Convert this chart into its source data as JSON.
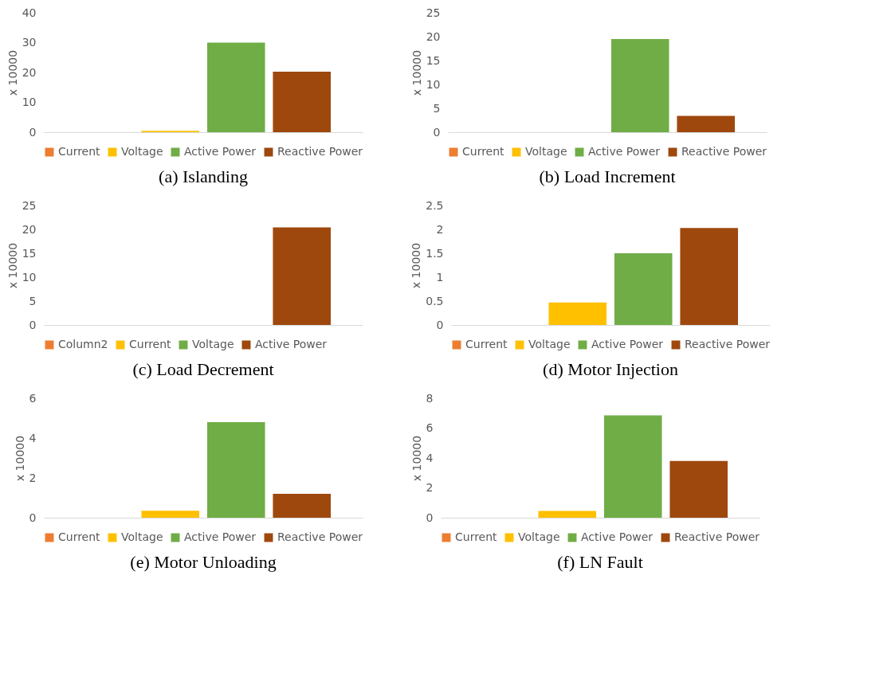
{
  "chart_data": [
    {
      "type": "bar",
      "title": "(a) Islanding",
      "ylabel": "x 10000",
      "categories": [
        null
      ],
      "ylim": [
        0,
        40
      ],
      "yticks": [
        0,
        10,
        20,
        30,
        40
      ],
      "legend": "bottom",
      "tick_labels": "y",
      "series": [
        {
          "name": "Current",
          "color": "#ed7d31",
          "values": [
            0
          ]
        },
        {
          "name": "Voltage",
          "color": "#ffc000",
          "values": [
            0.5
          ]
        },
        {
          "name": "Active Power",
          "color": "#70ad47",
          "values": [
            30
          ]
        },
        {
          "name": "Reactive Power",
          "color": "#9e480e",
          "values": [
            20.3
          ]
        }
      ]
    },
    {
      "type": "bar",
      "title": "(b) Load Increment",
      "ylabel": "x 10000",
      "categories": [
        null
      ],
      "ylim": [
        0,
        25
      ],
      "yticks": [
        0,
        5,
        10,
        15,
        20,
        25
      ],
      "legend": "bottom",
      "tick_labels": "y",
      "series": [
        {
          "name": "Current",
          "color": "#ed7d31",
          "values": [
            0
          ]
        },
        {
          "name": "Voltage",
          "color": "#ffc000",
          "values": [
            0
          ]
        },
        {
          "name": "Active Power",
          "color": "#70ad47",
          "values": [
            19.5
          ]
        },
        {
          "name": "Reactive Power",
          "color": "#9e480e",
          "values": [
            3.4
          ]
        }
      ]
    },
    {
      "type": "bar",
      "title": "(c) Load Decrement",
      "ylabel": "x 10000",
      "categories": [
        null
      ],
      "ylim": [
        0,
        25
      ],
      "yticks": [
        0,
        5,
        10,
        15,
        20,
        25
      ],
      "legend": "bottom",
      "tick_labels": "y",
      "series": [
        {
          "name": "Column2",
          "color": "#ed7d31",
          "values": [
            0
          ]
        },
        {
          "name": "Current",
          "color": "#ffc000",
          "values": [
            0
          ]
        },
        {
          "name": "Voltage",
          "color": "#70ad47",
          "values": [
            0
          ]
        },
        {
          "name": "Active Power",
          "color": "#9e480e",
          "values": [
            20.4
          ]
        }
      ]
    },
    {
      "type": "bar",
      "title": "(d) Motor Injection",
      "ylabel": "x 10000",
      "categories": [
        null
      ],
      "ylim": [
        0,
        2.5
      ],
      "yticks": [
        0,
        0.5,
        1,
        1.5,
        2,
        2.5
      ],
      "legend": "bottom",
      "tick_labels": "y",
      "series": [
        {
          "name": "Current",
          "color": "#ed7d31",
          "values": [
            0
          ]
        },
        {
          "name": "Voltage",
          "color": "#ffc000",
          "values": [
            0.47
          ]
        },
        {
          "name": "Active Power",
          "color": "#70ad47",
          "values": [
            1.5
          ]
        },
        {
          "name": "Reactive Power",
          "color": "#9e480e",
          "values": [
            2.03
          ]
        }
      ]
    },
    {
      "type": "bar",
      "title": "(e) Motor Unloading",
      "ylabel": "x 10000",
      "categories": [
        null
      ],
      "ylim": [
        0,
        6
      ],
      "yticks": [
        0,
        2,
        4,
        6
      ],
      "legend": "bottom",
      "tick_labels": "y",
      "series": [
        {
          "name": "Current",
          "color": "#ed7d31",
          "values": [
            0
          ]
        },
        {
          "name": "Voltage",
          "color": "#ffc000",
          "values": [
            0.35
          ]
        },
        {
          "name": "Active Power",
          "color": "#70ad47",
          "values": [
            4.8
          ]
        },
        {
          "name": "Reactive Power",
          "color": "#9e480e",
          "values": [
            1.2
          ]
        }
      ]
    },
    {
      "type": "bar",
      "title": "(f) LN Fault",
      "ylabel": "x 10000",
      "categories": [
        null
      ],
      "ylim": [
        0,
        8
      ],
      "yticks": [
        0,
        2,
        4,
        6,
        8
      ],
      "legend": "bottom",
      "tick_labels": "y",
      "series": [
        {
          "name": "Current",
          "color": "#ed7d31",
          "values": [
            0
          ]
        },
        {
          "name": "Voltage",
          "color": "#ffc000",
          "values": [
            0.45
          ]
        },
        {
          "name": "Active Power",
          "color": "#70ad47",
          "values": [
            6.85
          ]
        },
        {
          "name": "Reactive Power",
          "color": "#9e480e",
          "values": [
            3.8
          ]
        }
      ]
    }
  ]
}
